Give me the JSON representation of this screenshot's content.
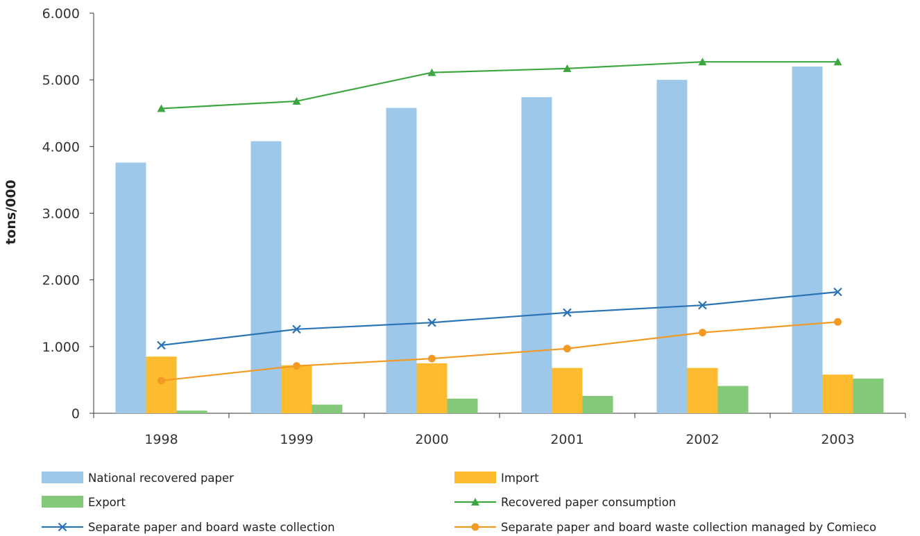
{
  "chart_data": {
    "type": "bar",
    "title": "",
    "xlabel": "",
    "ylabel": "tons/000",
    "ylim": [
      0,
      6000
    ],
    "y_ticks": [
      0,
      1000,
      2000,
      3000,
      4000,
      5000,
      6000
    ],
    "y_tick_labels": [
      "0",
      "1.000",
      "2.000",
      "3.000",
      "4.000",
      "5.000",
      "6.000"
    ],
    "categories": [
      "1998",
      "1999",
      "2000",
      "2001",
      "2002",
      "2003"
    ],
    "grid": false,
    "legend_position": "bottom",
    "series": [
      {
        "name": "National recovered paper",
        "kind": "bar",
        "color": "#9DC8EA",
        "values": [
          3760,
          4080,
          4580,
          4740,
          5000,
          5200
        ]
      },
      {
        "name": "Import",
        "kind": "bar",
        "color": "#FDBB30",
        "values": [
          850,
          720,
          750,
          680,
          680,
          580
        ]
      },
      {
        "name": "Export",
        "kind": "bar",
        "color": "#84C87A",
        "values": [
          40,
          130,
          220,
          260,
          410,
          520
        ]
      },
      {
        "name": "Recovered paper consumption",
        "kind": "line",
        "marker": "triangle",
        "color": "#3DA640",
        "values": [
          4570,
          4680,
          5110,
          5170,
          5270,
          5270
        ]
      },
      {
        "name": "Separate paper and board waste collection",
        "kind": "line",
        "marker": "x",
        "color": "#2A74B5",
        "values": [
          1020,
          1260,
          1360,
          1510,
          1620,
          1820
        ]
      },
      {
        "name": "Separate paper and board waste collection managed by Comieco",
        "kind": "line",
        "marker": "circle",
        "color": "#F39A25",
        "values": [
          490,
          710,
          820,
          970,
          1210,
          1370
        ]
      }
    ]
  }
}
